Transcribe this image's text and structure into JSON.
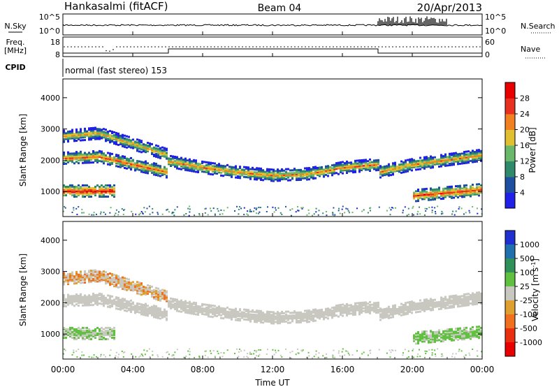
{
  "header": {
    "station": "Hankasalmi (fitACF)",
    "beam": "Beam 04",
    "date": "20/Apr/2013"
  },
  "panels": {
    "noise": {
      "left_label": "N.Sky",
      "left_ticks": [
        "10^5",
        "10^0"
      ],
      "right_label": "N.Search",
      "right_ticks": [
        "10^5",
        "10^0"
      ]
    },
    "freq": {
      "left_label_top": "Freq.",
      "left_label_bottom": "[MHz]",
      "left_ticks": [
        "18",
        "8"
      ],
      "right_label": "Nave",
      "right_ticks": [
        "60",
        "0"
      ]
    },
    "cpid": {
      "label": "CPID",
      "text": "normal (fast stereo) 153"
    }
  },
  "chart_data": [
    {
      "type": "heatmap",
      "name": "power",
      "ylabel": "Slant Range [km]",
      "ylim": [
        200,
        4600
      ],
      "yticks": [
        1000,
        2000,
        3000,
        4000
      ],
      "xlabel": "Time UT",
      "xlim_hours": [
        0,
        24
      ],
      "xtick_labels": [
        "00:00",
        "04:00",
        "08:00",
        "12:00",
        "16:00",
        "20:00",
        "00:00"
      ],
      "colorbar": {
        "label": "Power [dB]",
        "ticks": [
          "4",
          "8",
          "12",
          "16",
          "20",
          "24",
          "28"
        ],
        "colors": [
          "#2020e8",
          "#1f4fa0",
          "#2e8a6a",
          "#6ab86a",
          "#e0c030",
          "#f08020",
          "#e83020",
          "#e80000"
        ]
      },
      "bands": [
        {
          "name": "lower E-region echo",
          "range_km_by_hour": [
            [
              0,
              1050
            ],
            [
              1,
              1050
            ],
            [
              2,
              1050
            ],
            [
              3,
              1050
            ]
          ],
          "power_db": 28
        },
        {
          "name": "descending band",
          "range_km_by_hour": [
            [
              0,
              2100
            ],
            [
              2,
              2150
            ],
            [
              4,
              1900
            ],
            [
              6,
              1650
            ]
          ],
          "power_db": 24
        },
        {
          "name": "upper band",
          "range_km_by_hour": [
            [
              0,
              2800
            ],
            [
              2,
              2900
            ],
            [
              4,
              2550
            ],
            [
              6,
              2200
            ]
          ],
          "power_db": 20
        },
        {
          "name": "main F-region band",
          "range_km_by_hour": [
            [
              6,
              2000
            ],
            [
              8,
              1800
            ],
            [
              10,
              1650
            ],
            [
              12,
              1550
            ],
            [
              14,
              1600
            ],
            [
              16,
              1800
            ],
            [
              18,
              1900
            ]
          ],
          "power_db": 22
        },
        {
          "name": "evening band",
          "range_km_by_hour": [
            [
              18,
              1650
            ],
            [
              20,
              1900
            ],
            [
              22,
              2050
            ],
            [
              24,
              2200
            ]
          ],
          "power_db": 22
        },
        {
          "name": "evening low band",
          "range_km_by_hour": [
            [
              20,
              900
            ],
            [
              22,
              1000
            ],
            [
              24,
              1100
            ]
          ],
          "power_db": 26
        }
      ]
    },
    {
      "type": "heatmap",
      "name": "velocity",
      "ylabel": "Slant Range [km]",
      "ylim": [
        200,
        4600
      ],
      "yticks": [
        1000,
        2000,
        3000,
        4000
      ],
      "xlabel": "Time UT",
      "xlim_hours": [
        0,
        24
      ],
      "xtick_labels": [
        "00:00",
        "04:00",
        "08:00",
        "12:00",
        "16:00",
        "20:00",
        "00:00"
      ],
      "colorbar": {
        "label": "Velocity [m s^-1]",
        "ticks": [
          "1000",
          "500",
          "100",
          "25",
          "-25",
          "-100",
          "-500",
          "-1000"
        ],
        "colors": [
          "#2030d0",
          "#2070b0",
          "#30905a",
          "#60c040",
          "#c8c8c0",
          "#e0a030",
          "#f07020",
          "#e83010",
          "#e80000"
        ]
      }
    }
  ],
  "xaxis": {
    "label": "Time UT",
    "ticks": [
      "00:00",
      "04:00",
      "08:00",
      "12:00",
      "16:00",
      "20:00",
      "00:00"
    ]
  },
  "yaxis": {
    "label": "Slant Range [km]",
    "ticks": [
      "1000",
      "2000",
      "3000",
      "4000"
    ]
  }
}
